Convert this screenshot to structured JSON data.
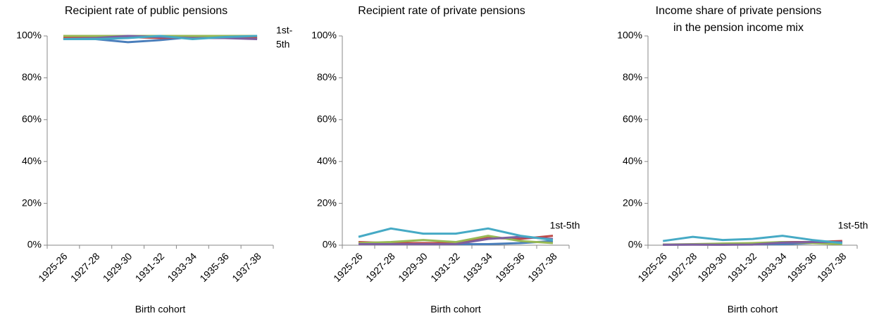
{
  "chart_data": [
    {
      "type": "line",
      "title": [
        "Recipient rate of public pensions"
      ],
      "xlabel": "Birth cohort",
      "annotation": [
        "1st-",
        "5th"
      ],
      "categories": [
        "1925-26",
        "1927-28",
        "1929-30",
        "1931-32",
        "1933-34",
        "1935-36",
        "1937-38"
      ],
      "ylim": [
        0,
        100
      ],
      "yticks": [
        {
          "value": 0,
          "label": "0%"
        },
        {
          "value": 20,
          "label": "20%"
        },
        {
          "value": 40,
          "label": "40%"
        },
        {
          "value": 60,
          "label": "60%"
        },
        {
          "value": 80,
          "label": "80%"
        },
        {
          "value": 100,
          "label": "100%"
        }
      ],
      "series": [
        {
          "color": "#4a7ebb",
          "values": [
            98.5,
            98.5,
            97,
            98,
            99.5,
            99,
            99
          ]
        },
        {
          "color": "#be4b48",
          "values": [
            99,
            99,
            99.5,
            99,
            99.5,
            99,
            99
          ]
        },
        {
          "color": "#98b954",
          "values": [
            100,
            100,
            100,
            100,
            100,
            100,
            100
          ]
        },
        {
          "color": "#7d60a0",
          "values": [
            98.5,
            99,
            100,
            99.5,
            99,
            99,
            98.5
          ]
        },
        {
          "color": "#46aac5",
          "values": [
            98.5,
            98.5,
            99,
            100,
            98.5,
            99.5,
            100
          ]
        }
      ]
    },
    {
      "type": "line",
      "title": [
        "Recipient rate of private pensions"
      ],
      "xlabel": "Birth cohort",
      "annotation": [
        "1st-5th"
      ],
      "categories": [
        "1925-26",
        "1927-28",
        "1929-30",
        "1931-32",
        "1933-34",
        "1935-36",
        "1937-38"
      ],
      "ylim": [
        0,
        100
      ],
      "yticks": [
        {
          "value": 0,
          "label": "0%"
        },
        {
          "value": 20,
          "label": "20%"
        },
        {
          "value": 40,
          "label": "40%"
        },
        {
          "value": 60,
          "label": "60%"
        },
        {
          "value": 80,
          "label": "80%"
        },
        {
          "value": 100,
          "label": "100%"
        }
      ],
      "series": [
        {
          "color": "#4a7ebb",
          "values": [
            0.5,
            0.5,
            0.5,
            0.5,
            0.5,
            1,
            2
          ]
        },
        {
          "color": "#be4b48",
          "values": [
            1.5,
            1,
            1,
            1,
            3.5,
            3,
            4.5
          ]
        },
        {
          "color": "#98b954",
          "values": [
            1,
            1.5,
            2.5,
            1.5,
            4.5,
            2,
            1
          ]
        },
        {
          "color": "#7d60a0",
          "values": [
            0.5,
            0.5,
            0.5,
            0.5,
            3,
            4,
            3
          ]
        },
        {
          "color": "#46aac5",
          "values": [
            4,
            8,
            5.5,
            5.5,
            8,
            4.5,
            2.5
          ]
        }
      ]
    },
    {
      "type": "line",
      "title": [
        "Income share of private pensions",
        "in the pension income mix"
      ],
      "xlabel": "Birth cohort",
      "annotation": [
        "1st-5th"
      ],
      "categories": [
        "1925-26",
        "1927-28",
        "1929-30",
        "1931-32",
        "1933-34",
        "1935-36",
        "1937-38"
      ],
      "ylim": [
        0,
        100
      ],
      "yticks": [
        {
          "value": 0,
          "label": "0%"
        },
        {
          "value": 20,
          "label": "20%"
        },
        {
          "value": 40,
          "label": "40%"
        },
        {
          "value": 60,
          "label": "60%"
        },
        {
          "value": 80,
          "label": "80%"
        },
        {
          "value": 100,
          "label": "100%"
        }
      ],
      "series": [
        {
          "color": "#4a7ebb",
          "values": [
            0.2,
            0.3,
            0.3,
            0.4,
            0.5,
            1,
            1.5
          ]
        },
        {
          "color": "#be4b48",
          "values": [
            0.3,
            0.3,
            0.3,
            0.5,
            1.5,
            1.5,
            2
          ]
        },
        {
          "color": "#98b954",
          "values": [
            0.3,
            0.5,
            0.8,
            1,
            1.5,
            1,
            0.5
          ]
        },
        {
          "color": "#7d60a0",
          "values": [
            0.2,
            0.3,
            0.2,
            0.3,
            1.2,
            1.5,
            1.5
          ]
        },
        {
          "color": "#46aac5",
          "values": [
            2,
            4,
            2.5,
            3,
            4.5,
            2.5,
            1
          ]
        }
      ]
    }
  ]
}
